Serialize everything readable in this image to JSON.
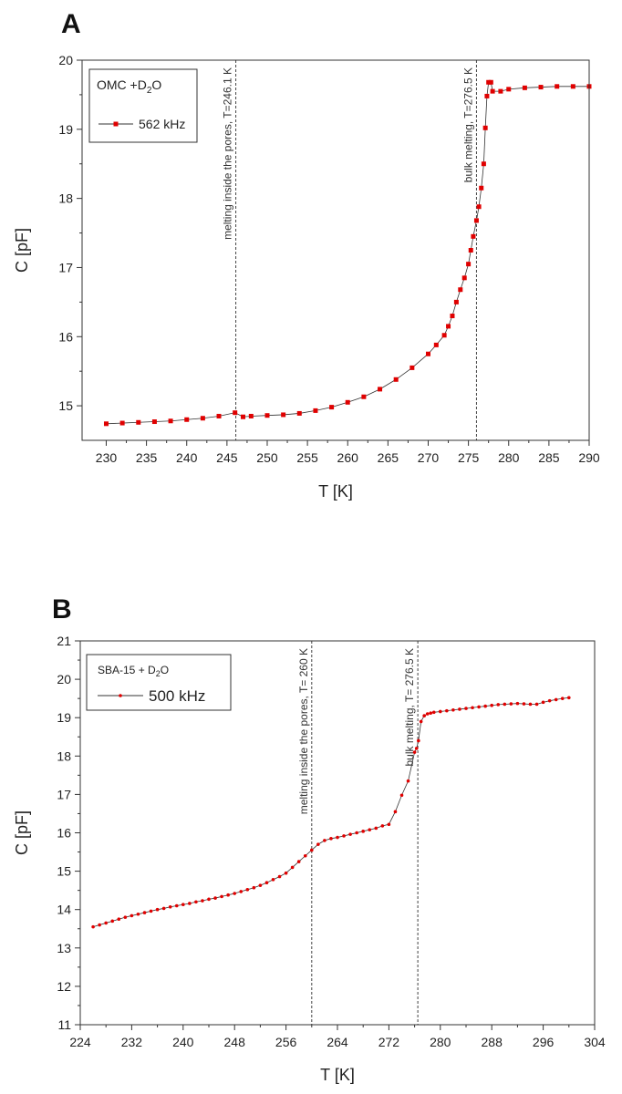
{
  "chart_data": [
    {
      "panel": "A",
      "type": "scatter",
      "xlabel": "T [K]",
      "ylabel": "C [pF]",
      "xlim": [
        227,
        290
      ],
      "ylim": [
        14.5,
        20
      ],
      "xticks": [
        230,
        235,
        240,
        245,
        250,
        255,
        260,
        265,
        270,
        275,
        280,
        285,
        290
      ],
      "yticks": [
        15,
        16,
        17,
        18,
        19,
        20
      ],
      "legend": {
        "title": "OMC +D",
        "title_sub": "2",
        "title_tail": "O",
        "placement": "top-left"
      },
      "series": [
        {
          "name": "562 kHz",
          "color": "#e00000",
          "marker": "square",
          "x": [
            230,
            232,
            234,
            236,
            238,
            240,
            242,
            244,
            246,
            247,
            248,
            250,
            252,
            254,
            256,
            258,
            260,
            262,
            264,
            266,
            268,
            270,
            271,
            272,
            272.5,
            273,
            273.5,
            274,
            274.5,
            275,
            275.3,
            275.6,
            276,
            276.3,
            276.6,
            276.9,
            277.1,
            277.3,
            277.5,
            277.8,
            278,
            279,
            280,
            282,
            284,
            286,
            288,
            290
          ],
          "y": [
            14.74,
            14.75,
            14.76,
            14.77,
            14.78,
            14.8,
            14.82,
            14.85,
            14.9,
            14.84,
            14.85,
            14.86,
            14.87,
            14.89,
            14.93,
            14.98,
            15.05,
            15.13,
            15.24,
            15.38,
            15.55,
            15.75,
            15.88,
            16.02,
            16.15,
            16.3,
            16.5,
            16.68,
            16.85,
            17.05,
            17.25,
            17.45,
            17.68,
            17.88,
            18.15,
            18.5,
            19.02,
            19.48,
            19.68,
            19.68,
            19.55,
            19.55,
            19.58,
            19.6,
            19.61,
            19.62,
            19.62,
            19.62
          ]
        }
      ],
      "annotations": [
        {
          "x": 246.1,
          "text": "melting inside the pores, T=246.1 K"
        },
        {
          "x": 276.0,
          "text": "bulk melting, T=276.5 K"
        }
      ]
    },
    {
      "panel": "B",
      "type": "scatter",
      "xlabel": "T [K]",
      "ylabel": "C [pF]",
      "xlim": [
        224,
        304
      ],
      "ylim": [
        11,
        21
      ],
      "xticks": [
        224,
        232,
        240,
        248,
        256,
        264,
        272,
        280,
        288,
        296,
        304
      ],
      "yticks": [
        11,
        12,
        13,
        14,
        15,
        16,
        17,
        18,
        19,
        20,
        21
      ],
      "legend": {
        "title": "SBA-15 + D",
        "title_sub": "2",
        "title_tail": "O",
        "placement": "top-left"
      },
      "series": [
        {
          "name": "500 kHz",
          "color": "#e00000",
          "marker": "dot",
          "x": [
            226,
            227,
            228,
            229,
            230,
            231,
            232,
            233,
            234,
            235,
            236,
            237,
            238,
            239,
            240,
            241,
            242,
            243,
            244,
            245,
            246,
            247,
            248,
            249,
            250,
            251,
            252,
            253,
            254,
            255,
            256,
            257,
            258,
            259,
            260,
            261,
            262,
            263,
            264,
            265,
            266,
            267,
            268,
            269,
            270,
            271,
            272,
            273,
            274,
            275,
            276,
            276.3,
            276.6,
            277,
            277.5,
            278,
            278.5,
            279,
            280,
            281,
            282,
            283,
            284,
            285,
            286,
            287,
            288,
            289,
            290,
            291,
            292,
            293,
            294,
            295,
            296,
            297,
            298,
            299,
            300
          ],
          "y": [
            13.55,
            13.6,
            13.65,
            13.7,
            13.75,
            13.8,
            13.84,
            13.88,
            13.92,
            13.96,
            14.0,
            14.03,
            14.07,
            14.1,
            14.13,
            14.16,
            14.2,
            14.23,
            14.27,
            14.3,
            14.34,
            14.38,
            14.42,
            14.47,
            14.52,
            14.57,
            14.63,
            14.7,
            14.78,
            14.86,
            14.95,
            15.1,
            15.25,
            15.4,
            15.55,
            15.7,
            15.8,
            15.85,
            15.88,
            15.92,
            15.96,
            16.0,
            16.04,
            16.08,
            16.12,
            16.18,
            16.22,
            16.55,
            16.98,
            17.35,
            18.1,
            18.2,
            18.4,
            18.9,
            19.05,
            19.1,
            19.12,
            19.14,
            19.16,
            19.18,
            19.2,
            19.22,
            19.24,
            19.26,
            19.28,
            19.3,
            19.32,
            19.34,
            19.35,
            19.36,
            19.37,
            19.36,
            19.35,
            19.35,
            19.4,
            19.44,
            19.47,
            19.5,
            19.52
          ]
        }
      ],
      "annotations": [
        {
          "x": 260,
          "text": "melting inside the pores, T= 260 K"
        },
        {
          "x": 276.5,
          "text": "bulk melting, T= 276.5 K"
        }
      ]
    }
  ]
}
